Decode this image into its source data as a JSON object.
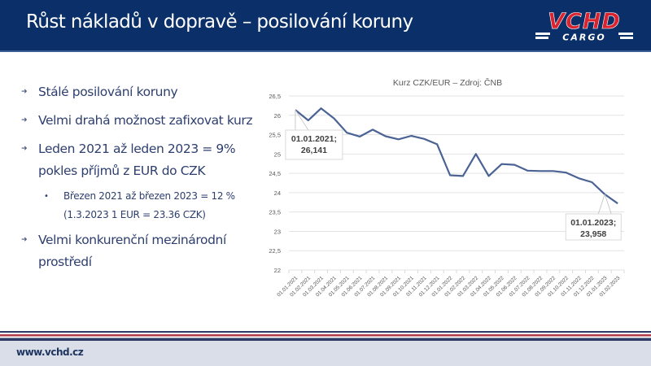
{
  "header": {
    "title": "Růst nákladů v dopravě – posilování koruny",
    "logo_top": "VCHD",
    "logo_bottom": "CARGO",
    "background_color": "#0b2f68",
    "logo_color": "#d9232e"
  },
  "bullets": [
    {
      "level": 1,
      "text": "Stálé posilování koruny"
    },
    {
      "level": 1,
      "text": "Velmi drahá možnost zafixovat kurz"
    },
    {
      "level": 1,
      "text": "Leden 2021 až leden 2023 = 9% pokles příjmů z EUR do CZK"
    },
    {
      "level": 2,
      "text": "Březen 2021 až březen 2023 = 12 % (1.3.2023 1 EUR = 23.36 CZK)"
    },
    {
      "level": 1,
      "text": "Velmi konkurenční mezinárodní prostředí"
    }
  ],
  "bullet_icons": {
    "level1": "arrow-bullet-icon",
    "level2": "dot-bullet-icon"
  },
  "footer": {
    "url": "www.vchd.cz",
    "stripe_colors": [
      "#2d3a66",
      "#ffffff",
      "#b23a48",
      "#ffffff",
      "#2d3a66"
    ]
  },
  "chart_data": {
    "type": "line",
    "title": "Kurz CZK/EUR  – Zdroj: ČNB",
    "xlabel": "",
    "ylabel": "",
    "ylim": [
      22,
      26.5
    ],
    "yticks": [
      "22",
      "22,5",
      "23",
      "23,5",
      "24",
      "24,5",
      "25",
      "25,5",
      "26",
      "26,5"
    ],
    "grid": true,
    "legend": "none",
    "line_color": "#4a6394",
    "categories": [
      "01.01.2021",
      "01.02.2021",
      "01.03.2021",
      "01.04.2021",
      "01.05.2021",
      "01.06.2021",
      "01.07.2021",
      "01.08.2021",
      "01.09.2021",
      "01.10.2021",
      "01.11.2021",
      "01.12.2021",
      "01.01.2022",
      "01.02.2022",
      "01.03.2022",
      "01.04.2022",
      "01.05.2022",
      "01.06.2022",
      "01.07.2022",
      "01.08.2022",
      "01.09.2022",
      "01.10.2022",
      "01.11.2022",
      "01.12.2022",
      "01.01.2023",
      "01.02.2023"
    ],
    "values": [
      26.141,
      25.87,
      26.18,
      25.92,
      25.55,
      25.45,
      25.63,
      25.46,
      25.38,
      25.47,
      25.39,
      25.25,
      24.45,
      24.43,
      25.0,
      24.43,
      24.74,
      24.72,
      24.57,
      24.56,
      24.56,
      24.52,
      24.37,
      24.27,
      23.958,
      23.72
    ],
    "annotations": [
      {
        "index": 0,
        "line1": "01.01.2021;",
        "line2": "26,141"
      },
      {
        "index": 24,
        "line1": "01.01.2023;",
        "line2": "23,958"
      }
    ]
  }
}
